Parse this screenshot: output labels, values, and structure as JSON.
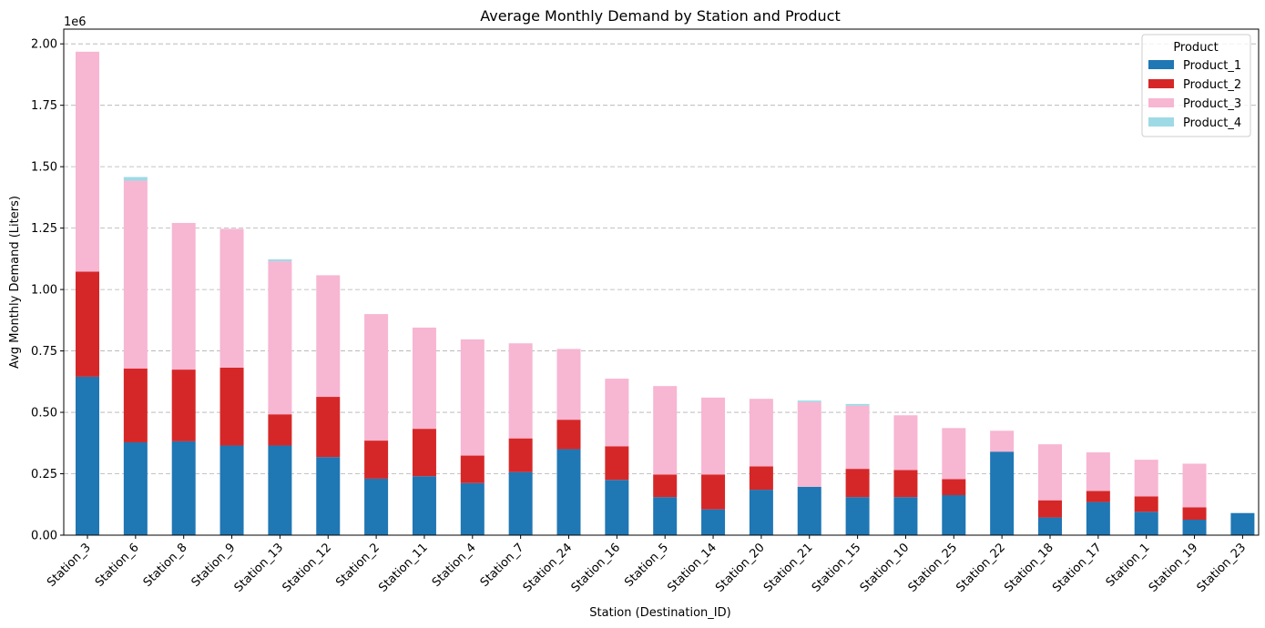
{
  "chart_data": {
    "type": "bar",
    "stacked": true,
    "title": "Average Monthly Demand by Station and Product",
    "xlabel": "Station (Destination_ID)",
    "ylabel": "Avg Monthly Demand (Liters)",
    "y_offset_text": "1e6",
    "ylim": [
      0,
      2.06
    ],
    "y_ticks": [
      "0.00",
      "0.25",
      "0.50",
      "0.75",
      "1.00",
      "1.25",
      "1.50",
      "1.75",
      "2.00"
    ],
    "grid": "y dashed",
    "legend": {
      "title": "Product",
      "position": "top-right"
    },
    "categories": [
      "Station_3",
      "Station_6",
      "Station_8",
      "Station_9",
      "Station_13",
      "Station_12",
      "Station_2",
      "Station_11",
      "Station_4",
      "Station_7",
      "Station_24",
      "Station_16",
      "Station_5",
      "Station_14",
      "Station_20",
      "Station_21",
      "Station_15",
      "Station_10",
      "Station_25",
      "Station_22",
      "Station_18",
      "Station_17",
      "Station_1",
      "Station_19",
      "Station_23"
    ],
    "series": [
      {
        "name": "Product_1",
        "color": "#1f77b4",
        "values": [
          0.645,
          0.378,
          0.382,
          0.365,
          0.365,
          0.318,
          0.23,
          0.24,
          0.212,
          0.257,
          0.35,
          0.225,
          0.155,
          0.105,
          0.185,
          0.197,
          0.155,
          0.155,
          0.163,
          0.34,
          0.072,
          0.135,
          0.095,
          0.063,
          0.09
        ]
      },
      {
        "name": "Product_2",
        "color": "#d62728",
        "values": [
          0.428,
          0.3,
          0.292,
          0.317,
          0.127,
          0.245,
          0.155,
          0.193,
          0.112,
          0.137,
          0.12,
          0.137,
          0.092,
          0.142,
          0.095,
          0.0,
          0.115,
          0.11,
          0.065,
          0.0,
          0.07,
          0.045,
          0.063,
          0.05,
          0.0
        ]
      },
      {
        "name": "Product_3",
        "color": "#f7b6d2",
        "values": [
          0.895,
          0.765,
          0.597,
          0.565,
          0.623,
          0.495,
          0.515,
          0.412,
          0.473,
          0.387,
          0.288,
          0.275,
          0.36,
          0.313,
          0.275,
          0.345,
          0.257,
          0.223,
          0.208,
          0.085,
          0.228,
          0.157,
          0.149,
          0.178,
          0.0
        ]
      },
      {
        "name": "Product_4",
        "color": "#9edae5",
        "values": [
          0.0,
          0.015,
          0.0,
          0.0,
          0.008,
          0.0,
          0.0,
          0.0,
          0.0,
          0.0,
          0.0,
          0.0,
          0.0,
          0.0,
          0.0,
          0.006,
          0.007,
          0.0,
          0.0,
          0.0,
          0.0,
          0.0,
          0.0,
          0.0,
          0.0
        ]
      }
    ]
  }
}
